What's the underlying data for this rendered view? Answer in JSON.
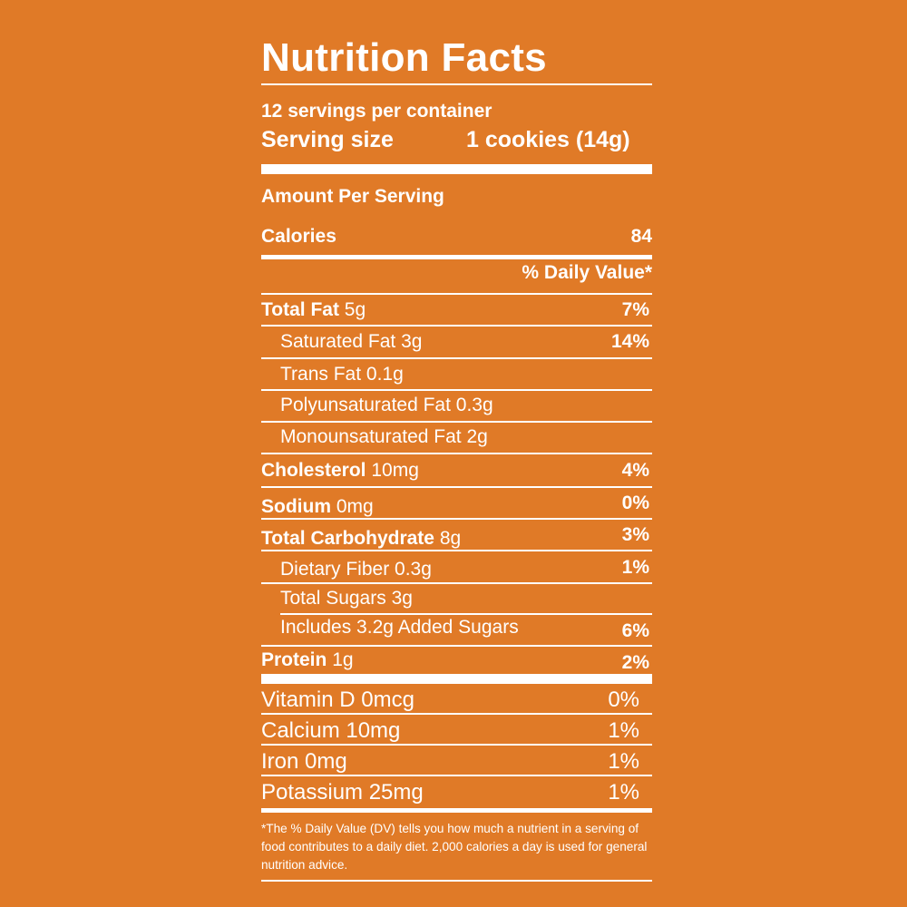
{
  "panel": {
    "background_color": "#E07A27",
    "text_color": "#FFFFFF",
    "title": "Nutrition Facts",
    "servings_per_container": "12 servings per container",
    "serving_size_label": "Serving size",
    "serving_size_value": "1 cookies (14g)",
    "amount_per_serving": "Amount Per Serving",
    "calories_label": "Calories",
    "calories_value": "84",
    "daily_value_header": "% Daily Value*",
    "nutrients": [
      {
        "name": "Total Fat",
        "amount": "5g",
        "dv": "7%"
      },
      {
        "name": "Saturated Fat 3g",
        "dv": "14%"
      },
      {
        "name": "Trans Fat 0.1g",
        "dv": ""
      },
      {
        "name": "Polyunsaturated Fat 0.3g",
        "dv": ""
      },
      {
        "name": "Monounsaturated Fat 2g",
        "dv": ""
      },
      {
        "name": "Cholesterol",
        "amount": "10mg",
        "dv": "4%"
      },
      {
        "name": "Sodium",
        "amount": "0mg",
        "dv": "0%"
      },
      {
        "name": "Total Carbohydrate",
        "amount": "8g",
        "dv": "3%"
      },
      {
        "name": "Dietary Fiber 0.3g",
        "dv": "1%"
      },
      {
        "name": "Total Sugars 3g",
        "dv": ""
      },
      {
        "name": "Includes 3.2g Added Sugars",
        "dv": "6%"
      },
      {
        "name": "Protein",
        "amount": "1g",
        "dv": "2%"
      }
    ],
    "vitamins": [
      {
        "name": "Vitamin D 0mcg",
        "dv": "0%"
      },
      {
        "name": "Calcium 10mg",
        "dv": "1%"
      },
      {
        "name": "Iron 0mg",
        "dv": "1%"
      },
      {
        "name": "Potassium 25mg",
        "dv": "1%"
      }
    ],
    "footnote": "*The % Daily Value (DV) tells you how much a nutrient in a serving of food contributes to a daily diet. 2,000 calories a day is used for general nutrition advice."
  }
}
